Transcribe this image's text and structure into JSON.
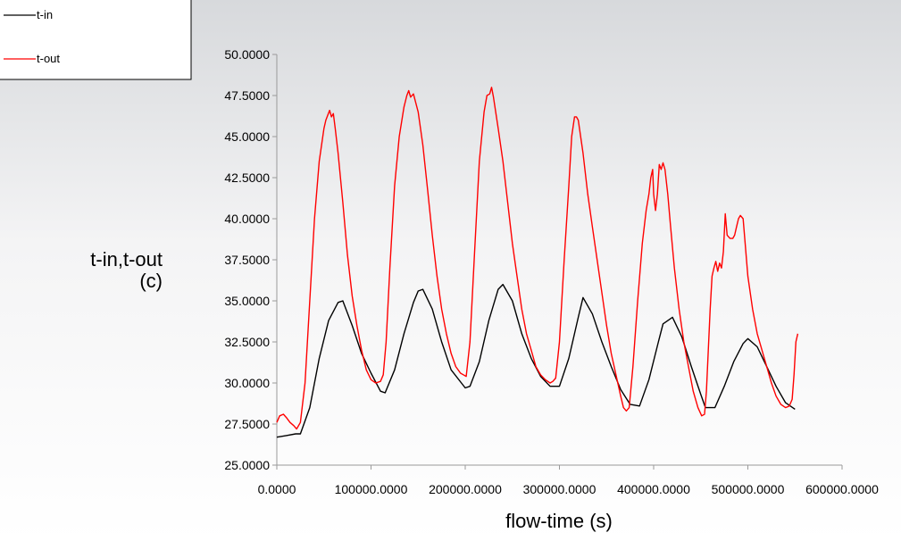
{
  "chart_data": {
    "type": "line",
    "xlabel": "flow-time (s)",
    "ylabel_line1": "t-in,t-out",
    "ylabel_line2": "(c)",
    "xlim": [
      0,
      600000
    ],
    "ylim": [
      25,
      50
    ],
    "x_ticks": [
      0,
      100000,
      200000,
      300000,
      400000,
      500000,
      600000
    ],
    "x_tick_labels": [
      "0.0000",
      "100000.0000",
      "200000.0000",
      "300000.0000",
      "400000.0000",
      "500000.0000",
      "600000.0000"
    ],
    "y_ticks": [
      25,
      27.5,
      30,
      32.5,
      35,
      37.5,
      40,
      42.5,
      45,
      47.5,
      50
    ],
    "y_tick_labels": [
      "25.0000",
      "27.5000",
      "30.0000",
      "32.5000",
      "35.0000",
      "37.5000",
      "40.0000",
      "42.5000",
      "45.0000",
      "47.5000",
      "50.0000"
    ],
    "legend_position": "top-left",
    "series": [
      {
        "name": "t-in",
        "color": "#000000",
        "x": [
          0,
          10000,
          20000,
          25000,
          35000,
          45000,
          55000,
          65000,
          70000,
          80000,
          90000,
          100000,
          110000,
          115000,
          125000,
          135000,
          145000,
          150000,
          155000,
          165000,
          175000,
          185000,
          200000,
          205000,
          215000,
          225000,
          235000,
          240000,
          250000,
          260000,
          270000,
          280000,
          290000,
          300000,
          310000,
          320000,
          325000,
          335000,
          345000,
          355000,
          365000,
          375000,
          385000,
          395000,
          405000,
          410000,
          420000,
          430000,
          440000,
          450000,
          455000,
          465000,
          475000,
          485000,
          495000,
          500000,
          510000,
          520000,
          530000,
          540000,
          550000
        ],
        "y": [
          26.7,
          26.8,
          26.9,
          26.9,
          28.5,
          31.5,
          33.8,
          34.9,
          35.0,
          33.5,
          31.8,
          30.6,
          29.5,
          29.4,
          30.8,
          33.0,
          34.9,
          35.6,
          35.7,
          34.5,
          32.5,
          30.8,
          29.7,
          29.8,
          31.3,
          33.8,
          35.7,
          36.0,
          35.0,
          33.0,
          31.5,
          30.4,
          29.8,
          29.8,
          31.5,
          34.0,
          35.2,
          34.2,
          32.5,
          31.0,
          29.6,
          28.7,
          28.6,
          30.2,
          32.5,
          33.6,
          34.0,
          32.8,
          31.0,
          29.3,
          28.5,
          28.5,
          29.8,
          31.3,
          32.4,
          32.7,
          32.2,
          31.0,
          29.8,
          28.8,
          28.4
        ]
      },
      {
        "name": "t-out",
        "color": "#ff0000",
        "x": [
          0,
          3000,
          7000,
          10000,
          14000,
          18000,
          21000,
          25000,
          30000,
          35000,
          40000,
          45000,
          50000,
          52000,
          54000,
          56000,
          58000,
          60000,
          62000,
          65000,
          70000,
          75000,
          80000,
          85000,
          90000,
          95000,
          100000,
          105000,
          110000,
          113000,
          116000,
          120000,
          125000,
          130000,
          135000,
          138000,
          140000,
          142000,
          145000,
          150000,
          155000,
          160000,
          165000,
          170000,
          175000,
          180000,
          185000,
          190000,
          195000,
          198000,
          201000,
          205000,
          210000,
          215000,
          220000,
          223000,
          226000,
          228000,
          230000,
          235000,
          240000,
          245000,
          250000,
          255000,
          260000,
          265000,
          270000,
          275000,
          280000,
          285000,
          290000,
          293000,
          296000,
          300000,
          305000,
          310000,
          313000,
          316000,
          318000,
          320000,
          325000,
          330000,
          335000,
          340000,
          345000,
          350000,
          355000,
          360000,
          365000,
          368000,
          371000,
          374000,
          378000,
          383000,
          388000,
          392000,
          395000,
          397000,
          399000,
          400000,
          402000,
          404000,
          406000,
          408000,
          410000,
          412000,
          415000,
          418000,
          422000,
          427000,
          432000,
          437000,
          442000,
          447000,
          451000,
          454000,
          456000,
          458000,
          460000,
          462000,
          464000,
          466000,
          468000,
          470000,
          472000,
          474000,
          476000,
          478000,
          481000,
          484000,
          486000,
          488000,
          490000,
          492000,
          495000,
          500000,
          505000,
          510000,
          515000,
          520000,
          525000,
          530000,
          535000,
          540000,
          544000,
          547000,
          549000,
          551000,
          553000
        ],
        "y": [
          27.6,
          28.0,
          28.1,
          27.9,
          27.6,
          27.4,
          27.2,
          27.6,
          30.0,
          35.0,
          40.0,
          43.5,
          45.5,
          46.0,
          46.3,
          46.6,
          46.2,
          46.4,
          45.5,
          44.0,
          41.0,
          37.8,
          35.3,
          33.5,
          32.0,
          30.8,
          30.2,
          30.0,
          30.1,
          30.5,
          32.5,
          37.0,
          42.0,
          45.0,
          46.8,
          47.5,
          47.8,
          47.4,
          47.6,
          46.5,
          44.5,
          41.8,
          39.0,
          36.5,
          34.5,
          33.0,
          31.8,
          31.0,
          30.6,
          30.5,
          30.4,
          32.5,
          38.0,
          43.5,
          46.5,
          47.5,
          47.6,
          48.0,
          47.4,
          45.5,
          43.5,
          41.0,
          38.5,
          36.5,
          34.5,
          33.0,
          32.0,
          31.0,
          30.5,
          30.2,
          30.0,
          30.1,
          30.3,
          32.5,
          37.5,
          42.0,
          45.0,
          46.2,
          46.2,
          46.0,
          44.0,
          41.5,
          39.5,
          37.5,
          35.5,
          33.5,
          31.8,
          30.5,
          29.2,
          28.5,
          28.3,
          28.5,
          31.0,
          35.0,
          38.5,
          40.5,
          41.5,
          42.5,
          43.0,
          41.5,
          40.5,
          41.5,
          43.3,
          43.0,
          43.4,
          43.0,
          41.5,
          39.5,
          37.0,
          34.5,
          32.5,
          31.0,
          29.5,
          28.5,
          28.0,
          28.1,
          29.5,
          32.0,
          34.5,
          36.5,
          37.0,
          37.4,
          36.8,
          37.3,
          37.0,
          38.0,
          40.3,
          39.0,
          38.8,
          38.8,
          39.0,
          39.5,
          40.0,
          40.2,
          40.0,
          36.5,
          34.5,
          33.0,
          32.0,
          31.0,
          30.0,
          29.2,
          28.7,
          28.5,
          28.6,
          29.0,
          30.5,
          32.5,
          33.0
        ]
      }
    ]
  }
}
